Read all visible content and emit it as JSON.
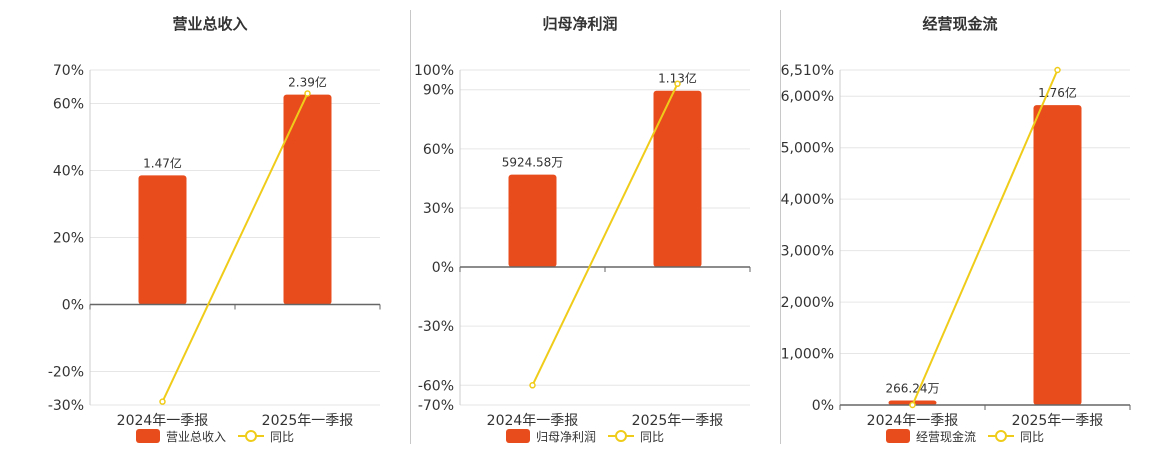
{
  "colors": {
    "bar": "#e84c1c",
    "line": "#f0cc1a",
    "grid": "#e6e6e6",
    "axis": "#666666",
    "text": "#333333"
  },
  "chart_data": [
    {
      "type": "bar",
      "title": "营业总收入",
      "categories": [
        "2024年一季报",
        "2025年一季报"
      ],
      "bar_labels": [
        "1.47亿",
        "2.39亿"
      ],
      "series": [
        {
          "name": "营业总收入",
          "values": [
            1.47,
            2.39
          ],
          "unit": "亿"
        },
        {
          "name": "同比",
          "type": "line",
          "values": [
            -29,
            63
          ],
          "unit": "%"
        }
      ],
      "ylim": [
        -30,
        70
      ],
      "yticks": [
        70,
        60,
        40,
        20,
        0,
        -20,
        -30
      ],
      "ytick_labels": [
        "70%",
        "60%",
        "40%",
        "20%",
        "0%",
        "-20%",
        "-30%"
      ],
      "legend": [
        "营业总收入",
        "同比"
      ],
      "legend_position": "bottom"
    },
    {
      "type": "bar",
      "title": "归母净利润",
      "categories": [
        "2024年一季报",
        "2025年一季报"
      ],
      "bar_labels": [
        "5924.58万",
        "1.13亿"
      ],
      "series": [
        {
          "name": "归母净利润",
          "values": [
            0.592458,
            1.13
          ],
          "unit": "亿"
        },
        {
          "name": "同比",
          "type": "line",
          "values": [
            -60,
            93
          ],
          "unit": "%"
        }
      ],
      "ylim": [
        -70,
        100
      ],
      "yticks": [
        100,
        90,
        60,
        30,
        0,
        -30,
        -60,
        -70
      ],
      "ytick_labels": [
        "100%",
        "90%",
        "60%",
        "30%",
        "0%",
        "-30%",
        "-60%",
        "-70%"
      ],
      "legend": [
        "归母净利润",
        "同比"
      ],
      "legend_position": "bottom"
    },
    {
      "type": "bar",
      "title": "经营现金流",
      "categories": [
        "2024年一季报",
        "2025年一季报"
      ],
      "bar_labels": [
        "266.24万",
        "1.76亿"
      ],
      "series": [
        {
          "name": "经营现金流",
          "values": [
            0.026624,
            1.76
          ],
          "unit": "亿"
        },
        {
          "name": "同比",
          "type": "line",
          "values": [
            -70,
            6510
          ],
          "unit": "%"
        }
      ],
      "ylim": [
        0,
        6510
      ],
      "yticks": [
        6510,
        6000,
        5000,
        4000,
        3000,
        2000,
        1000,
        0
      ],
      "ytick_labels": [
        "6,510%",
        "6,000%",
        "5,000%",
        "4,000%",
        "3,000%",
        "2,000%",
        "1,000%",
        "0%"
      ],
      "legend": [
        "经营现金流",
        "同比"
      ],
      "legend_position": "bottom"
    }
  ]
}
